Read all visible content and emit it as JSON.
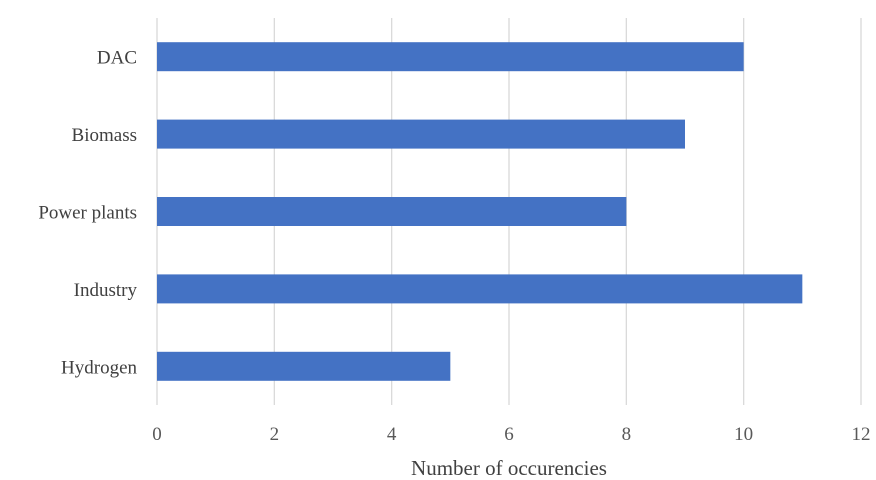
{
  "chart_data": {
    "type": "bar",
    "orientation": "horizontal",
    "categories": [
      "DAC",
      "Biomass",
      "Power plants",
      "Industry",
      "Hydrogen"
    ],
    "values": [
      10,
      9,
      8,
      11,
      5
    ],
    "title": "",
    "xlabel": "Number of occurencies",
    "ylabel": "",
    "xlim": [
      0,
      12
    ],
    "xticks": [
      "0",
      "2",
      "4",
      "6",
      "8",
      "10",
      "12"
    ],
    "grid": "vertical",
    "legend": "none",
    "bar_color": "#4472c4"
  }
}
